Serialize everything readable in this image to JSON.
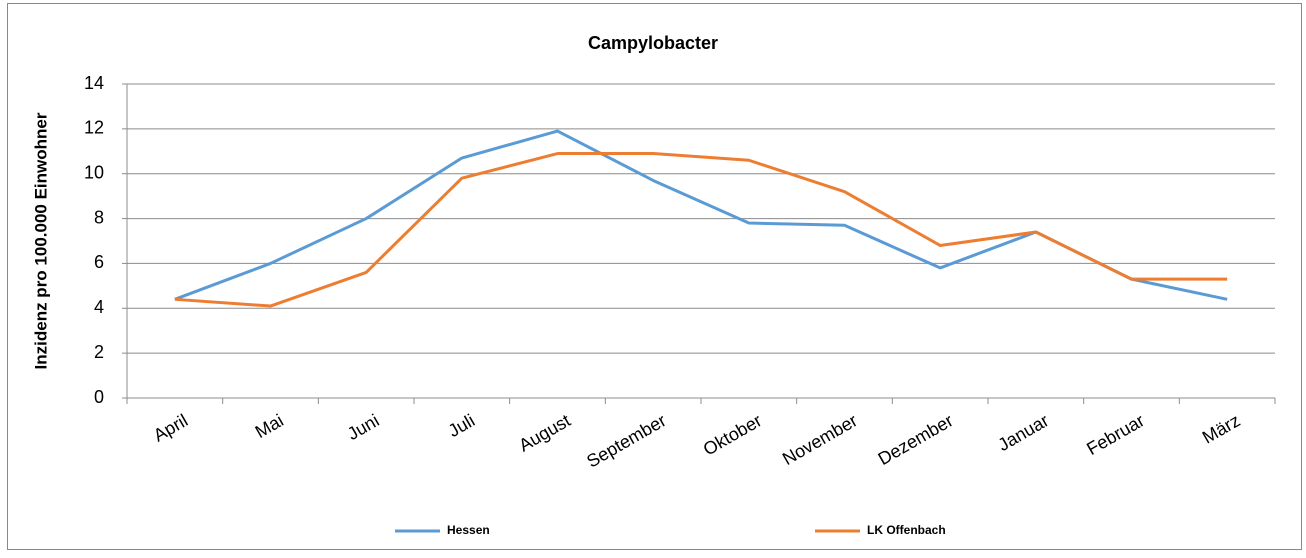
{
  "chart_data": {
    "type": "line",
    "title": "Campylobacter",
    "y_label": "Inzidenz pro 100.000 Einwohner",
    "categories": [
      "April",
      "Mai",
      "Juni",
      "Juli",
      "August",
      "September",
      "Oktober",
      "November",
      "Dezember",
      "Januar",
      "Februar",
      "März"
    ],
    "series": [
      {
        "name": "Hessen",
        "color": "#5b9bd5",
        "values": [
          4.4,
          6.0,
          8.0,
          10.7,
          11.9,
          9.7,
          7.8,
          7.7,
          5.8,
          7.4,
          5.3,
          4.4
        ]
      },
      {
        "name": "LK Offenbach",
        "color": "#ed7d31",
        "values": [
          4.4,
          4.1,
          5.6,
          9.8,
          10.9,
          10.9,
          10.6,
          9.2,
          6.8,
          7.4,
          5.3,
          5.3
        ]
      }
    ],
    "ylim": [
      0,
      14
    ],
    "yticks": [
      0,
      2,
      4,
      6,
      8,
      10,
      12,
      14
    ],
    "grid": true,
    "legend": "bottom"
  }
}
